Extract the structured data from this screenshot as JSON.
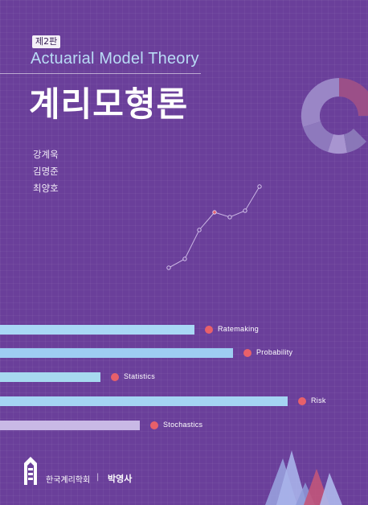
{
  "cover": {
    "edition": "제2판",
    "subtitle": "Actuarial Model Theory",
    "title": "계리모형론"
  },
  "authors": [
    "강계욱",
    "김명준",
    "최양호"
  ],
  "chart_data": {
    "type": "bar",
    "categories": [
      "Ratemaking",
      "Probability",
      "Statistics",
      "Risk",
      "Stochastics"
    ],
    "values": [
      242,
      290,
      125,
      358,
      174
    ],
    "colors": [
      "#a9d8f5",
      "#9ecdf2",
      "#a7d9ef",
      "#a5d4f3",
      "#c9b9e6"
    ],
    "marker_color": "#e8606a"
  },
  "decor": {
    "line_points": [
      [
        0,
        210,
        333
      ],
      [
        1,
        230,
        322
      ],
      [
        2,
        248,
        286
      ],
      [
        3,
        267,
        264
      ],
      [
        4,
        286,
        270
      ],
      [
        5,
        305,
        262
      ],
      [
        6,
        323,
        232
      ]
    ]
  },
  "footer": {
    "society": "한국계리학회",
    "separator": "|",
    "publisher": "박영사"
  },
  "colors": {
    "background": "#6a3f9a",
    "subtitle": "#b9dcf5",
    "marker": "#e8606a"
  }
}
